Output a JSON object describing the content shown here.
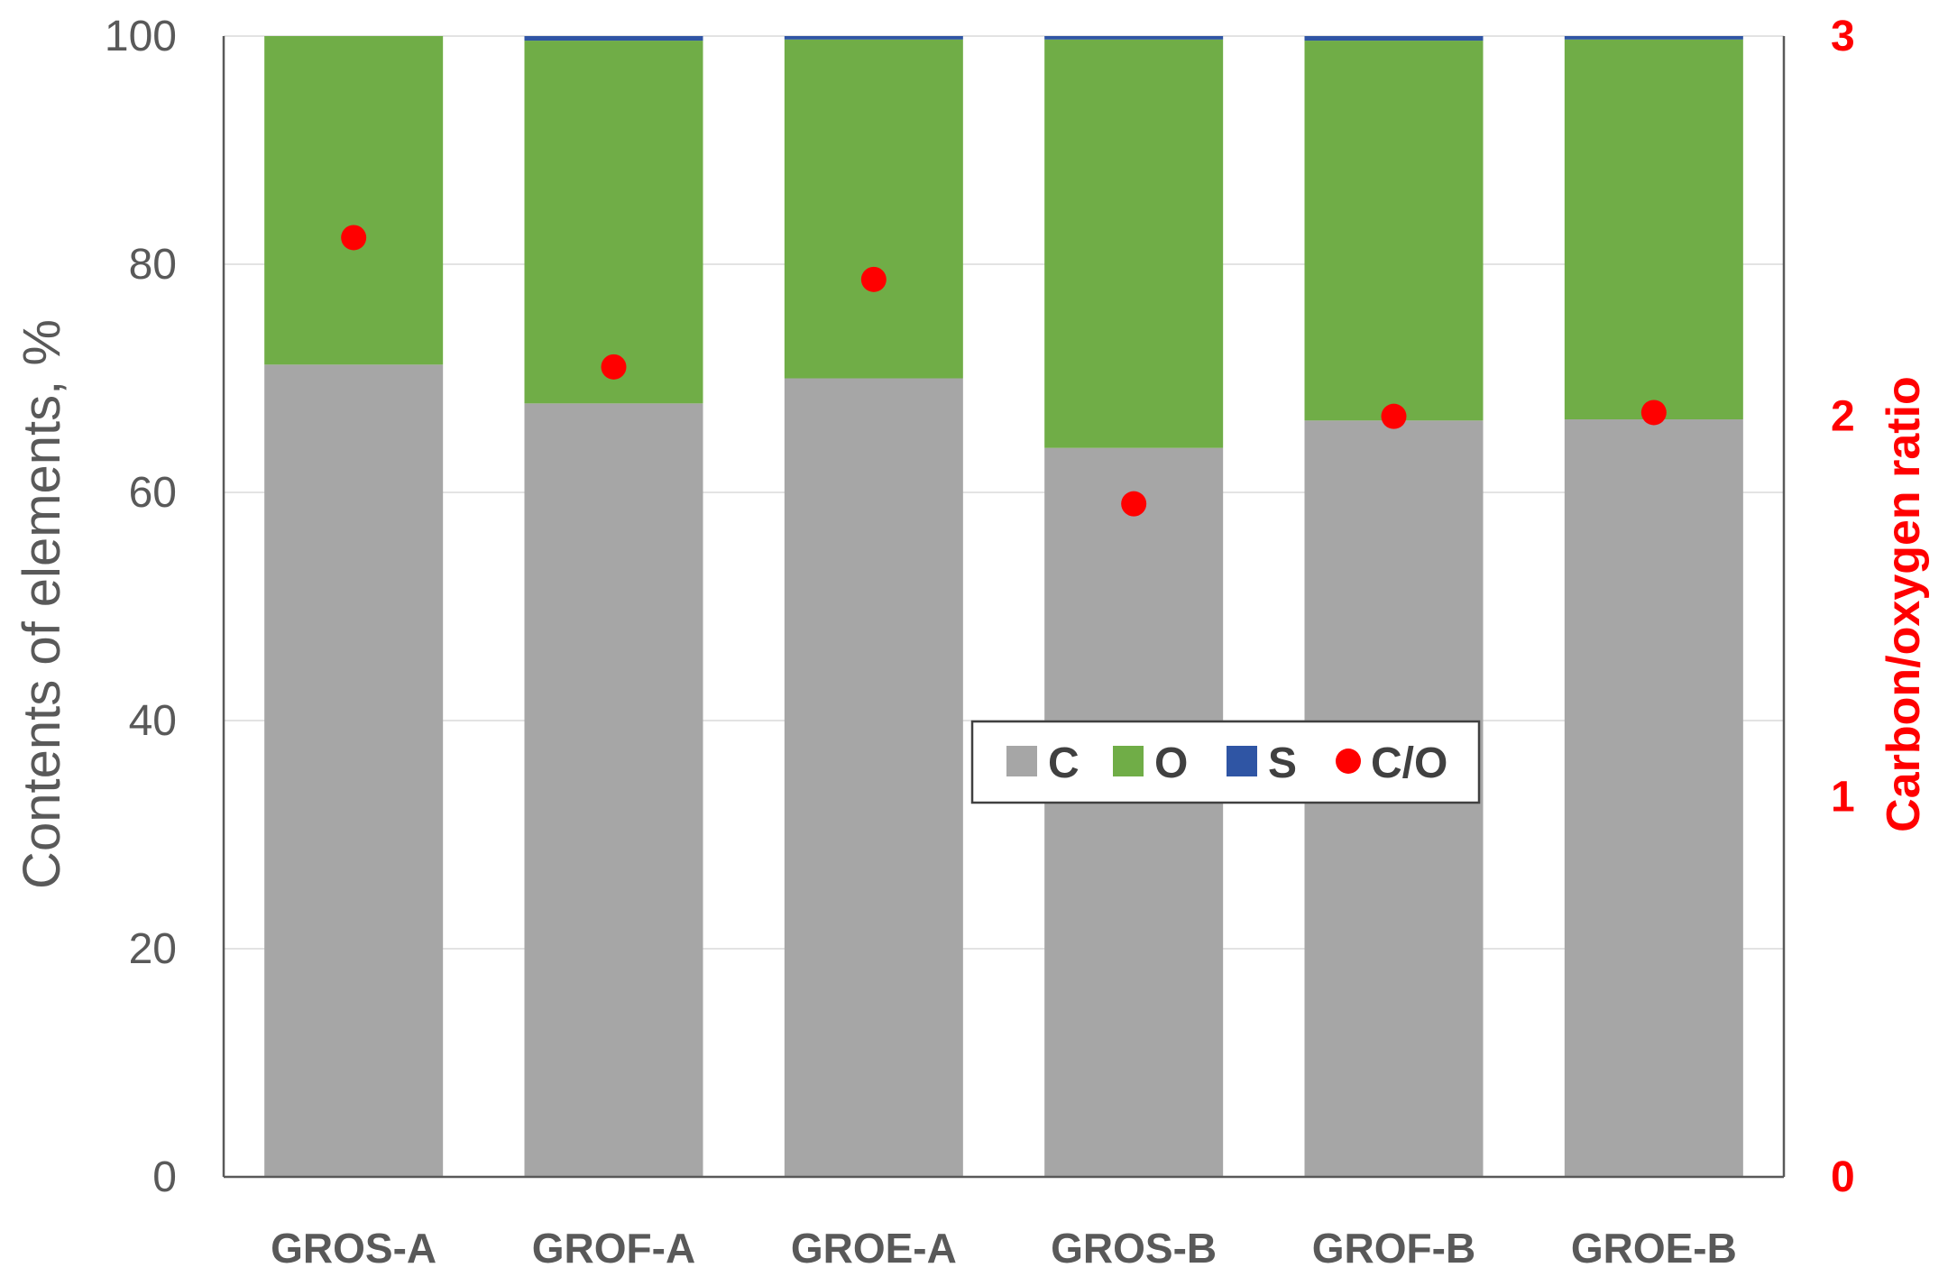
{
  "chart_data": {
    "type": "bar",
    "stacked": true,
    "categories": [
      "GROS-A",
      "GROF-A",
      "GROE-A",
      "GROS-B",
      "GROF-B",
      "GROE-B"
    ],
    "series": [
      {
        "name": "C",
        "axis": "left",
        "color": "#a6a6a6",
        "values": [
          71.2,
          67.8,
          70.0,
          63.9,
          66.3,
          66.4
        ]
      },
      {
        "name": "O",
        "axis": "left",
        "color": "#70ad47",
        "values": [
          28.8,
          31.8,
          29.7,
          35.8,
          33.3,
          33.3
        ]
      },
      {
        "name": "S",
        "axis": "left",
        "color": "#2f55a4",
        "values": [
          0.0,
          0.4,
          0.3,
          0.3,
          0.4,
          0.3
        ]
      },
      {
        "name": "C/O",
        "axis": "right",
        "type": "scatter",
        "color": "#ff0000",
        "values": [
          2.47,
          2.13,
          2.36,
          1.77,
          2.0,
          2.01
        ]
      }
    ],
    "ylabel": "Contents of elements, %",
    "ylabel_right": "Carbon/oxygen ratio",
    "ylim": [
      0,
      100
    ],
    "yticks": [
      "0",
      "20",
      "40",
      "60",
      "80",
      "100"
    ],
    "ylim_right": [
      0,
      3
    ],
    "yticks_right": [
      "0",
      "1",
      "2",
      "3"
    ],
    "grid": true,
    "legend_placement": "center"
  }
}
